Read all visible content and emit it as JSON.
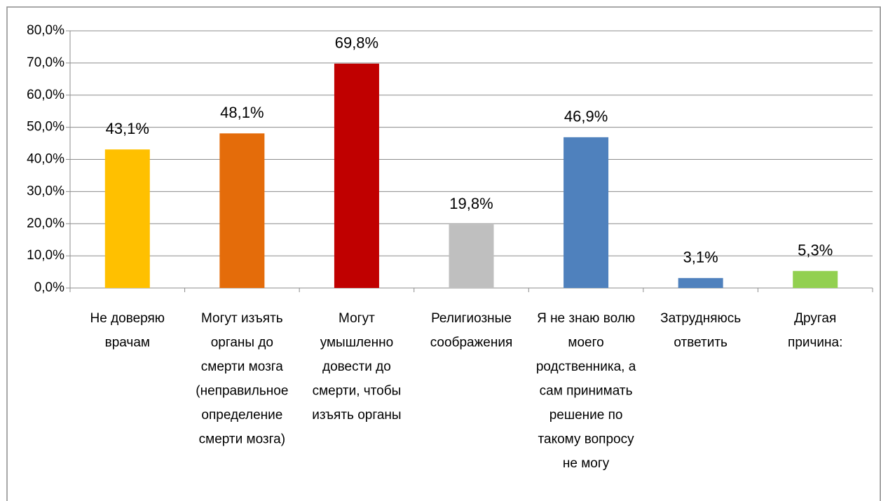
{
  "chart_data": {
    "type": "bar",
    "categories": [
      [
        "Не доверяю",
        "врачам"
      ],
      [
        "Могут изъять",
        "органы до",
        "смерти мозга",
        "(неправильное",
        "определение",
        "смерти мозга)"
      ],
      [
        "Могут",
        "умышленно",
        "довести до",
        "смерти, чтобы",
        "изъять органы"
      ],
      [
        "Религиозные",
        "соображения"
      ],
      [
        "Я не знаю волю",
        "моего",
        "родственника, а",
        "сам принимать",
        "решение по",
        "такому вопросу",
        "не могу"
      ],
      [
        "Затрудняюсь",
        "ответить"
      ],
      [
        "Другая",
        "причина:"
      ]
    ],
    "values": [
      43.1,
      48.1,
      69.8,
      19.8,
      46.9,
      3.1,
      5.3
    ],
    "value_labels": [
      "43,1%",
      "48,1%",
      "69,8%",
      "19,8%",
      "46,9%",
      "3,1%",
      "5,3%"
    ],
    "colors": [
      "#FFC000",
      "#E46C0A",
      "#C00000",
      "#BFBFBF",
      "#4F81BD",
      "#4F81BD",
      "#92D050"
    ],
    "ylim": [
      0,
      80
    ],
    "yticks": [
      {
        "value": 0,
        "label": "0,0%"
      },
      {
        "value": 10,
        "label": "10,0%"
      },
      {
        "value": 20,
        "label": "20,0%"
      },
      {
        "value": 30,
        "label": "30,0%"
      },
      {
        "value": 40,
        "label": "40,0%"
      },
      {
        "value": 50,
        "label": "50,0%"
      },
      {
        "value": 60,
        "label": "60,0%"
      },
      {
        "value": 70,
        "label": "70,0%"
      },
      {
        "value": 80,
        "label": "80,0%"
      }
    ],
    "grid": true
  }
}
